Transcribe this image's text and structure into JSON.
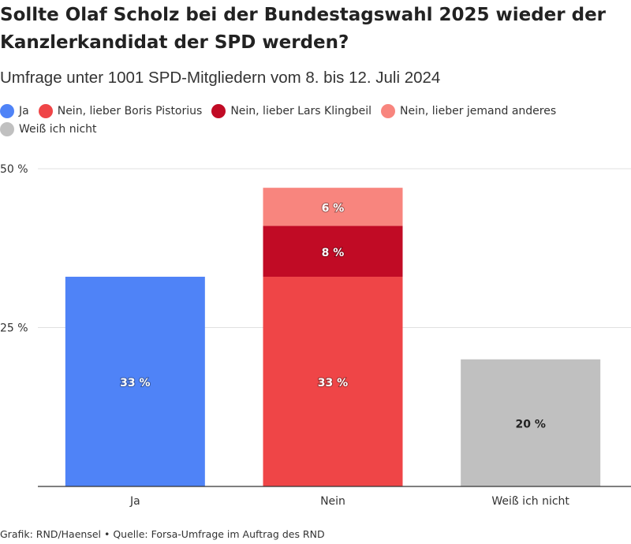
{
  "title": "Sollte Olaf Scholz bei der Bundestagswahl 2025 wieder der Kanzlerkandidat der SPD werden?",
  "subtitle": "Umfrage unter 1001 SPD-Mitgliedern vom 8. bis 12. Juli 2024",
  "legend": [
    {
      "label": "Ja",
      "color": "#4f83f7"
    },
    {
      "label": "Nein, lieber Boris Pistorius",
      "color": "#ef4547"
    },
    {
      "label": "Nein, lieber Lars Klingbeil",
      "color": "#c10b25"
    },
    {
      "label": "Nein, lieber jemand anderes",
      "color": "#f8857e"
    },
    {
      "label": "Weiß ich nicht",
      "color": "#c0c0c0"
    }
  ],
  "footer": "Grafik: RND/Haensel • Quelle: Forsa-Umfrage im Auftrag des RND",
  "chart_data": {
    "type": "bar",
    "stacked": true,
    "categories": [
      "Ja",
      "Nein",
      "Weiß ich nicht"
    ],
    "series": [
      {
        "name": "Ja",
        "color": "#4f83f7",
        "values": [
          33,
          0,
          0
        ],
        "labels": [
          "33 %",
          "",
          ""
        ]
      },
      {
        "name": "Nein, lieber Boris Pistorius",
        "color": "#ef4547",
        "values": [
          0,
          33,
          0
        ],
        "labels": [
          "",
          "33 %",
          ""
        ]
      },
      {
        "name": "Nein, lieber Lars Klingbeil",
        "color": "#c10b25",
        "values": [
          0,
          8,
          0
        ],
        "labels": [
          "",
          "8 %",
          ""
        ]
      },
      {
        "name": "Nein, lieber jemand anderes",
        "color": "#f8857e",
        "values": [
          0,
          6,
          0
        ],
        "labels": [
          "",
          "6 %",
          ""
        ]
      },
      {
        "name": "Weiß ich nicht",
        "color": "#c0c0c0",
        "values": [
          0,
          0,
          20
        ],
        "labels": [
          "",
          "",
          "20 %"
        ]
      }
    ],
    "ylim": [
      0,
      50
    ],
    "yticks": [
      {
        "value": 25,
        "label": "25 %"
      },
      {
        "value": 50,
        "label": "50 %"
      }
    ],
    "grid": true,
    "legend_position": "top"
  }
}
